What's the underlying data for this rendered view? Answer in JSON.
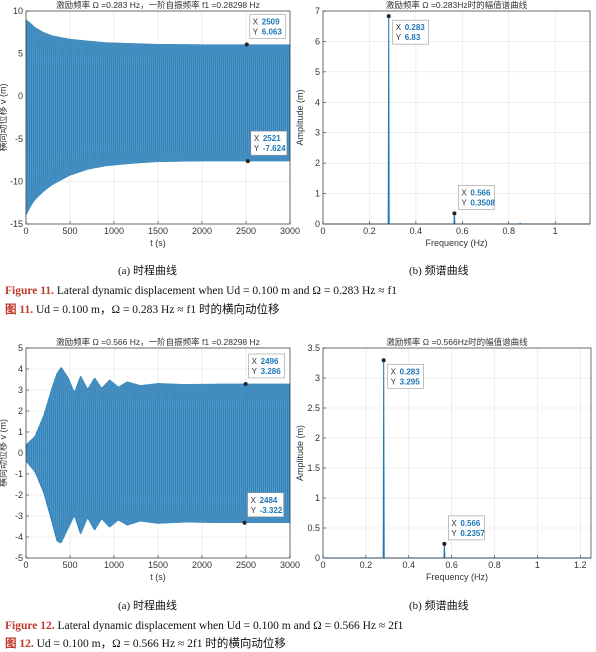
{
  "chart_data": [
    {
      "id": "p1",
      "type": "line",
      "title": "激励频率 Ω =0.283 Hz，一阶自振频率 f1 =0.28298 Hz",
      "xlabel": "t (s)",
      "ylabel": "横向动位移 v (m)",
      "xlim": [
        0,
        3000
      ],
      "ylim": [
        -15,
        10
      ],
      "xticks": [
        0,
        500,
        1000,
        1500,
        2000,
        2500,
        3000
      ],
      "yticks": [
        -15,
        -10,
        -5,
        0,
        5,
        10
      ],
      "grid": true,
      "color": "#1f77b4",
      "envelope": {
        "t": [
          0,
          50,
          100,
          200,
          300,
          500,
          700,
          900,
          1200,
          1500,
          2000,
          3000
        ],
        "upper": [
          9.0,
          8.6,
          8.1,
          7.5,
          7.1,
          6.7,
          6.5,
          6.3,
          6.2,
          6.1,
          6.06,
          6.06
        ],
        "lower": [
          -14.0,
          -13.0,
          -12.2,
          -11.2,
          -10.4,
          -9.3,
          -8.6,
          -8.2,
          -7.9,
          -7.7,
          -7.62,
          -7.62
        ]
      },
      "datatips": [
        {
          "x": "2509",
          "y": "6.063",
          "xv": 2509,
          "yv": 6.063
        },
        {
          "x": "2521",
          "y": "-7.624",
          "xv": 2521,
          "yv": -7.624
        }
      ]
    },
    {
      "id": "p2",
      "type": "line",
      "title": "激励频率 Ω =0.283Hz时的幅值谱曲线",
      "xlabel": "Frequency (Hz)",
      "ylabel": "Amplitude (m)",
      "xlim": [
        0,
        1.15
      ],
      "ylim": [
        0,
        7
      ],
      "xticks": [
        0,
        0.2,
        0.4,
        0.6,
        0.8,
        1
      ],
      "yticks": [
        0,
        1,
        2,
        3,
        4,
        5,
        6,
        7
      ],
      "grid": true,
      "color": "#1f77b4",
      "peaks": [
        {
          "f": 0.283,
          "a": 6.83
        },
        {
          "f": 0.566,
          "a": 0.3508
        },
        {
          "f": 0.849,
          "a": 0.02
        }
      ],
      "datatips": [
        {
          "x": "0.283",
          "y": "6.83",
          "xv": 0.283,
          "yv": 6.83
        },
        {
          "x": "0.566",
          "y": "0.3508",
          "xv": 0.566,
          "yv": 0.3508
        }
      ]
    },
    {
      "id": "p3",
      "type": "line",
      "title": "激励频率 Ω =0.566 Hz，一阶自振频率 f1 =0.28298 Hz",
      "xlabel": "t (s)",
      "ylabel": "横向动位移 v (m)",
      "xlim": [
        0,
        3000
      ],
      "ylim": [
        -5,
        5
      ],
      "xticks": [
        0,
        500,
        1000,
        1500,
        2000,
        2500,
        3000
      ],
      "yticks": [
        -5,
        -4,
        -3,
        -2,
        -1,
        0,
        1,
        2,
        3,
        4,
        5
      ],
      "grid": true,
      "color": "#1f77b4",
      "envelope": {
        "t": [
          0,
          100,
          200,
          300,
          350,
          400,
          480,
          550,
          620,
          700,
          780,
          860,
          950,
          1050,
          1150,
          1300,
          1500,
          1800,
          2200,
          3000
        ],
        "upper": [
          0.4,
          0.8,
          1.8,
          3.2,
          3.8,
          4.1,
          3.6,
          2.9,
          3.7,
          3.05,
          3.6,
          3.1,
          3.5,
          3.15,
          3.4,
          3.22,
          3.32,
          3.27,
          3.29,
          3.29
        ],
        "lower": [
          -0.4,
          -0.9,
          -1.9,
          -3.4,
          -4.2,
          -4.3,
          -3.6,
          -3.0,
          -3.9,
          -3.1,
          -3.7,
          -3.15,
          -3.55,
          -3.2,
          -3.45,
          -3.25,
          -3.36,
          -3.3,
          -3.32,
          -3.32
        ]
      },
      "datatips": [
        {
          "x": "2496",
          "y": "3.286",
          "xv": 2496,
          "yv": 3.286
        },
        {
          "x": "2484",
          "y": "-3.322",
          "xv": 2484,
          "yv": -3.322
        }
      ]
    },
    {
      "id": "p4",
      "type": "line",
      "title": "激励频率 Ω =0.566Hz时的幅值谱曲线",
      "xlabel": "Frequency (Hz)",
      "ylabel": "Amplitude (m)",
      "xlim": [
        0,
        1.25
      ],
      "ylim": [
        0,
        3.5
      ],
      "xticks": [
        0,
        0.2,
        0.4,
        0.6,
        0.8,
        1,
        1.2
      ],
      "yticks": [
        0,
        0.5,
        1,
        1.5,
        2,
        2.5,
        3,
        3.5
      ],
      "grid": true,
      "color": "#1f77b4",
      "peaks": [
        {
          "f": 0.283,
          "a": 3.295
        },
        {
          "f": 0.566,
          "a": 0.2357
        }
      ],
      "datatips": [
        {
          "x": "0.283",
          "y": "3.295",
          "xv": 0.283,
          "yv": 3.295
        },
        {
          "x": "0.566",
          "y": "0.2357",
          "xv": 0.566,
          "yv": 0.2357
        }
      ]
    }
  ],
  "captions": {
    "p1": "(a) 时程曲线",
    "p2": "(b) 频谱曲线",
    "p3": "(a) 时程曲线",
    "p4": "(b) 频谱曲线"
  },
  "figure11": {
    "en_label": "Figure 11.",
    "en_text": "Lateral dynamic displacement when Ud = 0.100 m and Ω = 0.283 Hz ≈ f1",
    "cn_label": "图 11.",
    "cn_text": "Ud = 0.100 m，Ω = 0.283 Hz ≈ f1 时的横向动位移"
  },
  "figure12": {
    "en_label": "Figure 12.",
    "en_text": "Lateral dynamic displacement when Ud = 0.100 m and Ω = 0.566 Hz ≈ 2f1",
    "cn_label": "图 12.",
    "cn_text": "Ud = 0.100 m，Ω = 0.566 Hz ≈ 2f1 时的横向动位移"
  }
}
